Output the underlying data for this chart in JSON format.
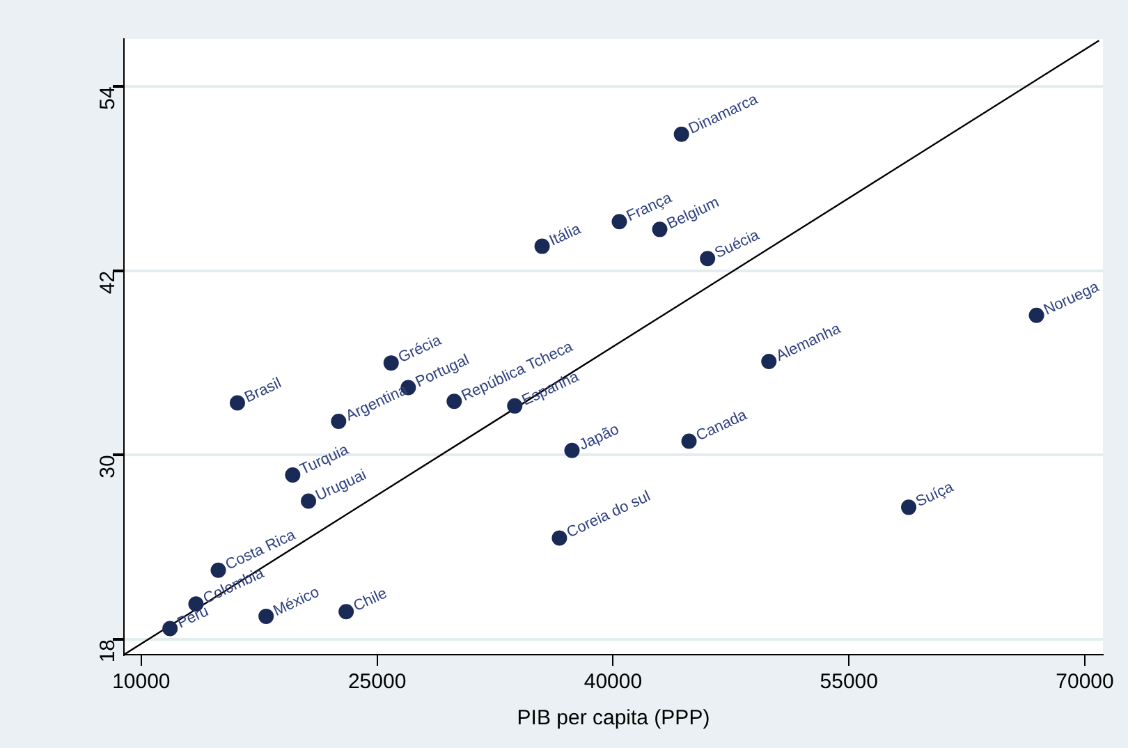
{
  "chart_data": {
    "type": "scatter",
    "xlabel": "PIB per capita (PPP)",
    "xlim": [
      8900,
      71150
    ],
    "xticks": [
      10000,
      25000,
      40000,
      55000,
      70000
    ],
    "ylim": [
      17,
      57.1
    ],
    "yticks": [
      18,
      30,
      42,
      54
    ],
    "grid": "y",
    "legend": false,
    "marker": "circle",
    "series": [
      {
        "type": "scatter",
        "color": "#1a2a56",
        "x": [
          35490,
          25890,
          26980,
          16115,
          22550,
          29900,
          33750,
          37390,
          19630,
          20635,
          36590,
          14900,
          13480,
          11830,
          17940,
          23030,
          44350,
          40400,
          42970,
          46010,
          66925,
          49910,
          44830,
          58800
        ],
        "values": [
          43.6,
          36.0,
          34.4,
          33.4,
          32.2,
          33.5,
          33.2,
          30.3,
          28.7,
          27.0,
          24.6,
          22.5,
          20.3,
          18.7,
          19.5,
          19.8,
          50.9,
          45.2,
          44.7,
          42.8,
          39.1,
          36.1,
          30.9,
          26.6
        ]
      },
      {
        "type": "line",
        "color": "#000000",
        "line_style": "solid",
        "marker": "none",
        "x": [
          8900,
          70900
        ],
        "values": [
          17,
          57
        ]
      }
    ],
    "annotations": [
      {
        "text": "Itália",
        "x": 35490,
        "y": 43.6
      },
      {
        "text": "Grécia",
        "x": 25890,
        "y": 36.0
      },
      {
        "text": "Portugal",
        "x": 26980,
        "y": 34.4
      },
      {
        "text": "Brasil",
        "x": 16115,
        "y": 33.4
      },
      {
        "text": "Argentina",
        "x": 22550,
        "y": 32.2
      },
      {
        "text": "República Tcheca",
        "x": 29900,
        "y": 33.5
      },
      {
        "text": "Espanha",
        "x": 33750,
        "y": 33.2
      },
      {
        "text": "Japão",
        "x": 37390,
        "y": 30.3
      },
      {
        "text": "Turquia",
        "x": 19630,
        "y": 28.7
      },
      {
        "text": "Uruguai",
        "x": 20635,
        "y": 27.0
      },
      {
        "text": "Coreia do sul",
        "x": 36590,
        "y": 24.6
      },
      {
        "text": "Costa Rica",
        "x": 14900,
        "y": 22.5
      },
      {
        "text": "Colombia",
        "x": 13480,
        "y": 20.3
      },
      {
        "text": "Peru",
        "x": 11830,
        "y": 18.7
      },
      {
        "text": "México",
        "x": 17940,
        "y": 19.5
      },
      {
        "text": "Chile",
        "x": 23030,
        "y": 19.8
      },
      {
        "text": "Dinamarca",
        "x": 44350,
        "y": 50.9
      },
      {
        "text": "França",
        "x": 40400,
        "y": 45.2
      },
      {
        "text": "Belgium",
        "x": 42970,
        "y": 44.7
      },
      {
        "text": "Suécia",
        "x": 46010,
        "y": 42.8
      },
      {
        "text": "Noruega",
        "x": 66925,
        "y": 39.1
      },
      {
        "text": "Alemanha",
        "x": 49910,
        "y": 36.1
      },
      {
        "text": "Canada",
        "x": 44830,
        "y": 30.9
      },
      {
        "text": "Suíça",
        "x": 58800,
        "y": 26.6
      }
    ]
  }
}
